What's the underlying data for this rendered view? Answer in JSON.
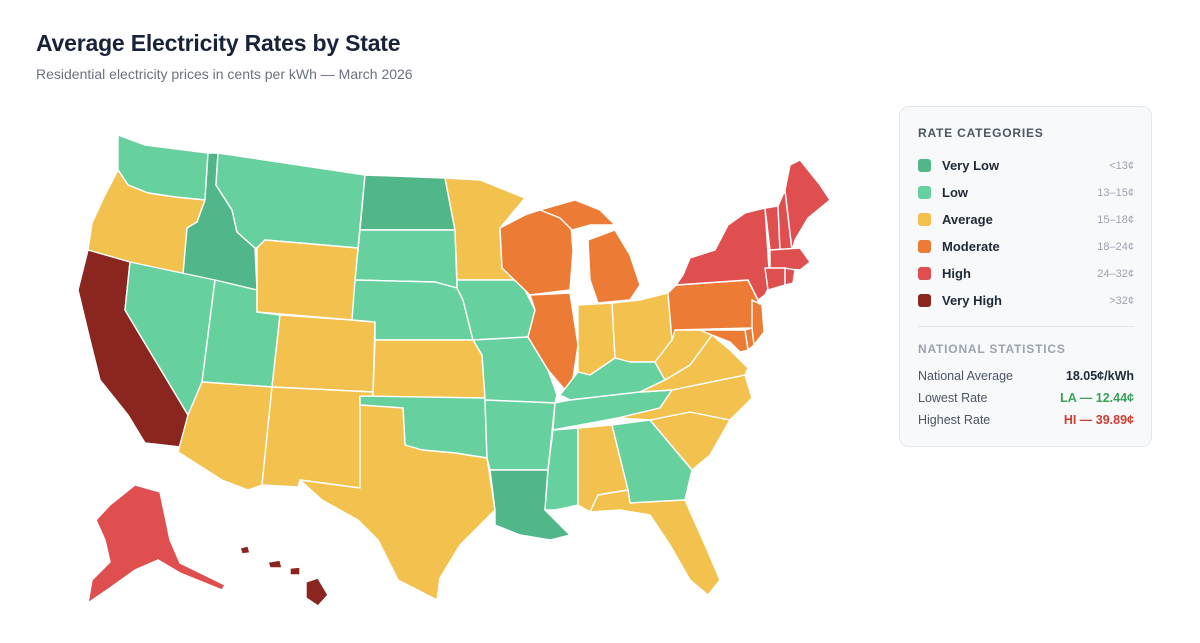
{
  "header": {
    "title": "Average Electricity Rates by State",
    "subtitle": "Residential electricity prices in cents per kWh — March 2026"
  },
  "colors": {
    "very_low": "#52b788",
    "low": "#66d19e",
    "average": "#f2c14e",
    "moderate": "#ec7c35",
    "high": "#df4f4f",
    "very_high": "#8b2520"
  },
  "legend": {
    "heading": "RATE CATEGORIES",
    "items": [
      {
        "label": "Very Low",
        "range": "<13¢",
        "color": "#52b788"
      },
      {
        "label": "Low",
        "range": "13–15¢",
        "color": "#66d19e"
      },
      {
        "label": "Average",
        "range": "15–18¢",
        "color": "#f2c14e"
      },
      {
        "label": "Moderate",
        "range": "18–24¢",
        "color": "#ec7c35"
      },
      {
        "label": "High",
        "range": "24–32¢",
        "color": "#df4f4f"
      },
      {
        "label": "Very High",
        "range": ">32¢",
        "color": "#8b2520"
      }
    ]
  },
  "stats": {
    "heading": "NATIONAL STATISTICS",
    "items": [
      {
        "label": "National Average",
        "value": "18.05¢/kWh",
        "color": "#1f2937"
      },
      {
        "label": "Lowest Rate",
        "value": "LA — 12.44¢",
        "color": "#3aa15a"
      },
      {
        "label": "Highest Rate",
        "value": "HI — 39.89¢",
        "color": "#d13b32"
      }
    ]
  },
  "state_categories": {
    "WA": "low",
    "OR": "average",
    "CA": "very_high",
    "ID": "very_low",
    "NV": "low",
    "UT": "low",
    "AZ": "average",
    "MT": "low",
    "WY": "average",
    "CO": "average",
    "NM": "average",
    "ND": "very_low",
    "SD": "low",
    "NE": "low",
    "KS": "average",
    "OK": "low",
    "TX": "average",
    "MN": "average",
    "IA": "low",
    "MO": "low",
    "AR": "low",
    "LA": "very_low",
    "WI": "moderate",
    "IL": "moderate",
    "MI": "moderate",
    "IN": "average",
    "OH": "average",
    "KY": "low",
    "TN": "low",
    "MS": "low",
    "AL": "average",
    "GA": "low",
    "FL": "average",
    "SC": "average",
    "NC": "average",
    "VA": "average",
    "WV": "average",
    "PA": "moderate",
    "NY": "high",
    "VT": "high",
    "NH": "high",
    "ME": "high",
    "MA": "high",
    "CT": "high",
    "RI": "high",
    "NJ": "moderate",
    "DE": "moderate",
    "MD": "moderate",
    "AK": "high",
    "HI": "very_high"
  }
}
